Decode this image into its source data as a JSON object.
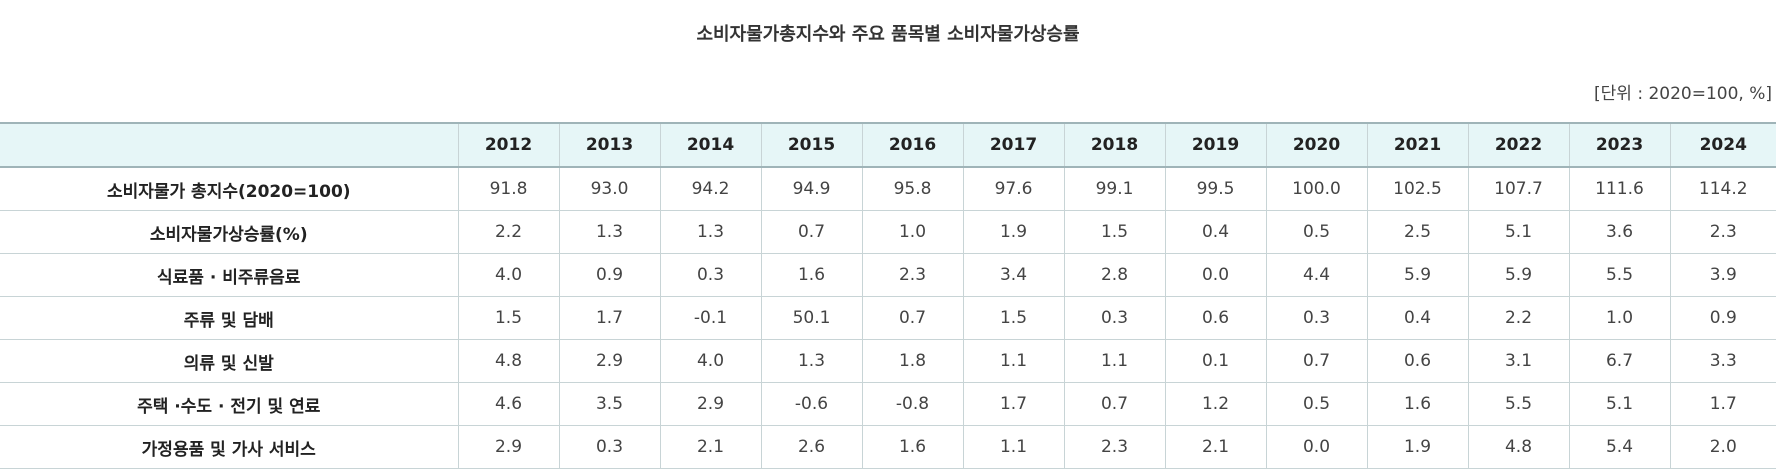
{
  "title": "소비자물가총지수와 주요 품목별 소비자물가상승률",
  "unit": "[단위 : 2020=100, %]",
  "table": {
    "corner": "",
    "years": [
      "2012",
      "2013",
      "2014",
      "2015",
      "2016",
      "2017",
      "2018",
      "2019",
      "2020",
      "2021",
      "2022",
      "2023",
      "2024"
    ],
    "rows": [
      {
        "label": "소비자물가 총지수(2020=100)",
        "values": [
          "91.8",
          "93.0",
          "94.2",
          "94.9",
          "95.8",
          "97.6",
          "99.1",
          "99.5",
          "100.0",
          "102.5",
          "107.7",
          "111.6",
          "114.2"
        ]
      },
      {
        "label": "소비자물가상승률(%)",
        "values": [
          "2.2",
          "1.3",
          "1.3",
          "0.7",
          "1.0",
          "1.9",
          "1.5",
          "0.4",
          "0.5",
          "2.5",
          "5.1",
          "3.6",
          "2.3"
        ]
      },
      {
        "label": "식료품 · 비주류음료",
        "values": [
          "4.0",
          "0.9",
          "0.3",
          "1.6",
          "2.3",
          "3.4",
          "2.8",
          "0.0",
          "4.4",
          "5.9",
          "5.9",
          "5.5",
          "3.9"
        ]
      },
      {
        "label": "주류 및 담배",
        "values": [
          "1.5",
          "1.7",
          "-0.1",
          "50.1",
          "0.7",
          "1.5",
          "0.3",
          "0.6",
          "0.3",
          "0.4",
          "2.2",
          "1.0",
          "0.9"
        ]
      },
      {
        "label": "의류 및 신발",
        "values": [
          "4.8",
          "2.9",
          "4.0",
          "1.3",
          "1.8",
          "1.1",
          "1.1",
          "0.1",
          "0.7",
          "0.6",
          "3.1",
          "6.7",
          "3.3"
        ]
      },
      {
        "label": "주택 ·수도 · 전기 및 연료",
        "values": [
          "4.6",
          "3.5",
          "2.9",
          "-0.6",
          "-0.8",
          "1.7",
          "0.7",
          "1.2",
          "0.5",
          "1.6",
          "5.5",
          "5.1",
          "1.7"
        ]
      },
      {
        "label": "가정용품 및 가사 서비스",
        "values": [
          "2.9",
          "0.3",
          "2.1",
          "2.6",
          "1.6",
          "1.1",
          "2.3",
          "2.1",
          "0.0",
          "1.9",
          "4.8",
          "5.4",
          "2.0"
        ]
      }
    ]
  }
}
